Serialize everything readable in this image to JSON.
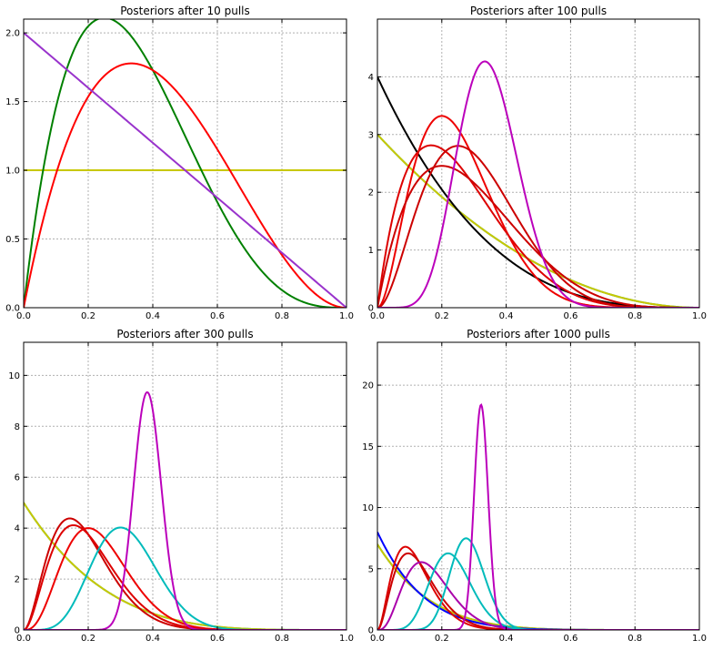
{
  "chart_data": [
    {
      "type": "line",
      "title": "Posteriors after 10 pulls",
      "xlim": [
        0,
        1
      ],
      "ylim": [
        0,
        2.1
      ],
      "xticks": [
        "0.0",
        "0.2",
        "0.4",
        "0.6",
        "0.8",
        "1.0"
      ],
      "yticks": [
        0.0,
        0.5,
        1.0,
        1.5,
        2.0
      ],
      "ytick_labels": [
        "0.0",
        "0.5",
        "1.0",
        "1.5",
        "2.0"
      ],
      "grid": true,
      "series": [
        {
          "color": "#00aaaa",
          "alpha": 1,
          "beta": 1
        },
        {
          "color": "#c8c800",
          "alpha": 1,
          "beta": 1
        },
        {
          "color": "#008000",
          "alpha": 2,
          "beta": 4
        },
        {
          "color": "#ff0000",
          "alpha": 2,
          "beta": 3
        },
        {
          "color": "#9933cc",
          "alpha": 1,
          "beta": 2
        }
      ]
    },
    {
      "type": "line",
      "title": "Posteriors after 100 pulls",
      "xlim": [
        0,
        1
      ],
      "ylim": [
        0,
        5.0
      ],
      "xticks": [
        "0.0",
        "0.2",
        "0.4",
        "0.6",
        "0.8",
        "1.0"
      ],
      "yticks": [
        0,
        1,
        2,
        3,
        4
      ],
      "ytick_labels": [
        "0",
        "1",
        "2",
        "3",
        "4"
      ],
      "grid": true,
      "series": [
        {
          "color": "#00aaaa",
          "alpha": 1,
          "beta": 3
        },
        {
          "color": "#c8c800",
          "alpha": 1,
          "beta": 3
        },
        {
          "color": "#000000",
          "alpha": 1,
          "beta": 4
        },
        {
          "color": "#ee0000",
          "alpha": 3,
          "beta": 9
        },
        {
          "color": "#dd0000",
          "alpha": 2,
          "beta": 6
        },
        {
          "color": "#cc0000",
          "alpha": 2,
          "beta": 5
        },
        {
          "color": "#cc0000",
          "alpha": 3,
          "beta": 7
        },
        {
          "color": "#bb00bb",
          "alpha": 9,
          "beta": 17
        }
      ]
    },
    {
      "type": "line",
      "title": "Posteriors after 300 pulls",
      "xlim": [
        0,
        1
      ],
      "ylim": [
        0,
        11.3
      ],
      "xticks": [
        "0.0",
        "0.2",
        "0.4",
        "0.6",
        "0.8",
        "1.0"
      ],
      "yticks": [
        0,
        2,
        4,
        6,
        8,
        10
      ],
      "ytick_labels": [
        "0",
        "2",
        "4",
        "6",
        "8",
        "10"
      ],
      "grid": true,
      "series": [
        {
          "color": "#00aaaa",
          "alpha": 1,
          "beta": 5
        },
        {
          "color": "#c8c800",
          "alpha": 1,
          "beta": 5
        },
        {
          "color": "#cc0000",
          "alpha": 3,
          "beta": 13
        },
        {
          "color": "#ee0000",
          "alpha": 4,
          "beta": 13
        },
        {
          "color": "#dd0000",
          "alpha": 3,
          "beta": 12
        },
        {
          "color": "#00bbbb",
          "alpha": 7,
          "beta": 15
        },
        {
          "color": "#bb00bb",
          "alpha": 50,
          "beta": 80
        }
      ]
    },
    {
      "type": "line",
      "title": "Posteriors after 1000 pulls",
      "xlim": [
        0,
        1
      ],
      "ylim": [
        0,
        23.5
      ],
      "xticks": [
        "0.0",
        "0.2",
        "0.4",
        "0.6",
        "0.8",
        "1.0"
      ],
      "yticks": [
        0,
        5,
        10,
        15,
        20
      ],
      "ytick_labels": [
        "0",
        "5",
        "10",
        "15",
        "20"
      ],
      "grid": true,
      "series": [
        {
          "color": "#00aaaa",
          "alpha": 1,
          "beta": 7
        },
        {
          "color": "#c8c800",
          "alpha": 1,
          "beta": 7
        },
        {
          "color": "#0000ff",
          "alpha": 1,
          "beta": 8
        },
        {
          "color": "#dd0000",
          "alpha": 3,
          "beta": 22
        },
        {
          "color": "#cc0000",
          "alpha": 3,
          "beta": 20
        },
        {
          "color": "#aa00aa",
          "alpha": 4,
          "beta": 20
        },
        {
          "color": "#00bbbb",
          "alpha": 10,
          "beta": 33
        },
        {
          "color": "#00bbbb",
          "alpha": 20,
          "beta": 51
        },
        {
          "color": "#bb00bb",
          "alpha": 150,
          "beta": 315
        }
      ]
    }
  ]
}
